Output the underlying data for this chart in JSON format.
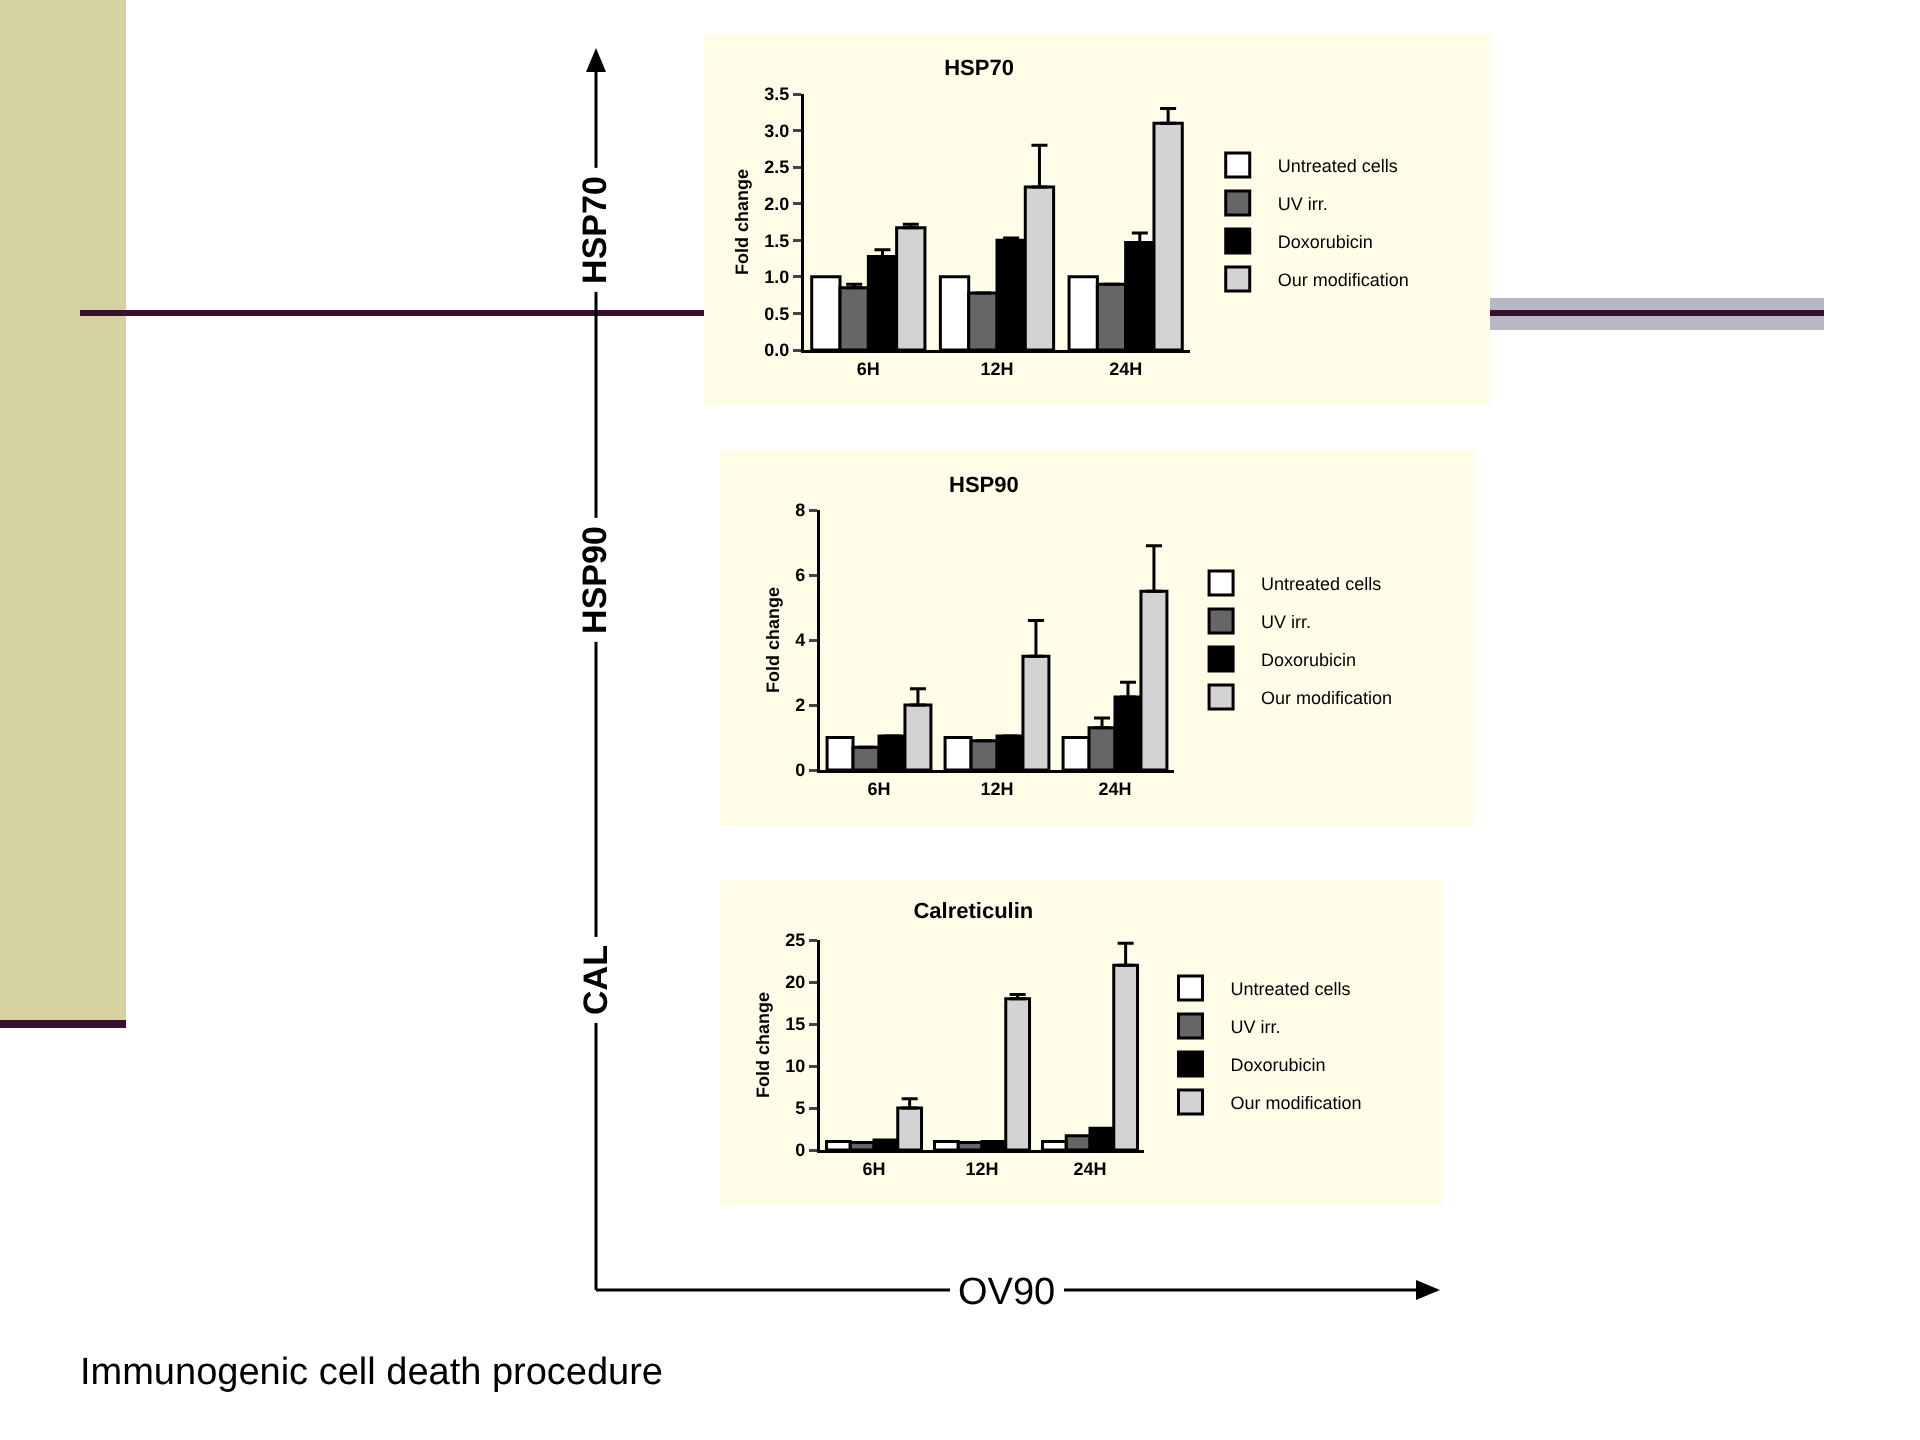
{
  "chart_data": [
    {
      "type": "bar",
      "title": "HSP70",
      "ylabel": "Fold change",
      "categories": [
        "6H",
        "12H",
        "24H"
      ],
      "ylim": [
        0,
        3.5
      ],
      "yticks": [
        {
          "value": 0,
          "label": "0.0"
        },
        {
          "value": 0.5,
          "label": "0.5"
        },
        {
          "value": 1,
          "label": "1.0"
        },
        {
          "value": 1.5,
          "label": "1.5"
        },
        {
          "value": 2,
          "label": "2.0"
        },
        {
          "value": 2.5,
          "label": "2.5"
        },
        {
          "value": 3,
          "label": "3.0"
        },
        {
          "value": 3.5,
          "label": "3.5"
        }
      ],
      "grid": false,
      "legend": "right",
      "annotations": [
        "HSP70"
      ],
      "series": [
        {
          "name": "Untreated cells",
          "color": "#ffffff",
          "values": [
            1,
            1,
            1
          ]
        },
        {
          "name": "UV irr.",
          "color": "#666666",
          "values": [
            0.85,
            0.78,
            0.9
          ],
          "errors": [
            [
              0.85,
              0.9
            ],
            null,
            null
          ]
        },
        {
          "name": "Doxorubicin",
          "color": "#000000",
          "values": [
            1.28,
            1.5,
            1.47
          ],
          "errors": [
            [
              1.28,
              1.37
            ],
            [
              1.5,
              1.53
            ],
            [
              1.47,
              1.6
            ]
          ]
        },
        {
          "name": "Our modification",
          "color": "#d3d3d3",
          "values": [
            1.67,
            2.23,
            3.1
          ],
          "errors": [
            [
              1.67,
              1.72
            ],
            [
              2.23,
              2.8
            ],
            [
              3.1,
              3.3
            ]
          ]
        }
      ]
    },
    {
      "type": "bar",
      "title": "HSP90",
      "ylabel": "Fold change",
      "categories": [
        "6H",
        "12H",
        "24H"
      ],
      "ylim": [
        0,
        8
      ],
      "yticks": [
        0,
        2,
        4,
        6,
        8
      ],
      "grid": false,
      "legend": "right",
      "annotations": [
        "HSP90"
      ],
      "series": [
        {
          "name": "Untreated cells",
          "color": "#ffffff",
          "values": [
            1,
            1,
            1
          ]
        },
        {
          "name": "UV irr.",
          "color": "#666666",
          "values": [
            0.7,
            0.9,
            1.3
          ],
          "errors": [
            null,
            null,
            [
              1.3,
              1.6
            ]
          ]
        },
        {
          "name": "Doxorubicin",
          "color": "#000000",
          "values": [
            1.05,
            1.05,
            2.25
          ],
          "errors": [
            null,
            null,
            [
              2.25,
              2.7
            ]
          ]
        },
        {
          "name": "Our modification",
          "color": "#d3d3d3",
          "values": [
            2.0,
            3.5,
            5.5
          ],
          "errors": [
            [
              2.0,
              2.5
            ],
            [
              3.5,
              4.6
            ],
            [
              5.5,
              6.9
            ]
          ]
        }
      ]
    },
    {
      "type": "bar",
      "title": "Calreticulin",
      "ylabel": "Fold change",
      "categories": [
        "6H",
        "12H",
        "24H"
      ],
      "ylim": [
        0,
        25
      ],
      "yticks": [
        0,
        5,
        10,
        15,
        20,
        25
      ],
      "grid": false,
      "legend": "right",
      "annotations": [
        "CAL",
        "OV90",
        "Immunogenic cell death procedure"
      ],
      "series": [
        {
          "name": "Untreated cells",
          "color": "#ffffff",
          "values": [
            1,
            1,
            1
          ]
        },
        {
          "name": "UV irr.",
          "color": "#666666",
          "values": [
            0.9,
            0.9,
            1.7
          ]
        },
        {
          "name": "Doxorubicin",
          "color": "#000000",
          "values": [
            1.2,
            1.0,
            2.6
          ]
        },
        {
          "name": "Our modification",
          "color": "#d3d3d3",
          "values": [
            5.0,
            18.0,
            22.0
          ],
          "errors": [
            [
              5.0,
              6.1
            ],
            [
              18.0,
              18.5
            ],
            [
              22.0,
              24.6
            ]
          ]
        }
      ]
    }
  ]
}
